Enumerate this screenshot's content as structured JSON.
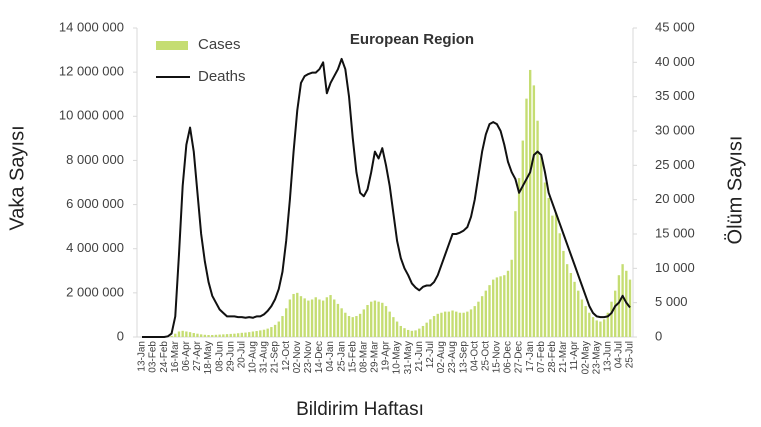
{
  "chart_data": {
    "type": "bar",
    "title": "European Region",
    "x_label": "Bildirim Haftası",
    "y_label": "Vaka Sayısı",
    "y2_label": "Ölüm Sayısı",
    "categories": [
      "13-Jan",
      null,
      null,
      "03-Feb",
      null,
      null,
      "24-Feb",
      null,
      null,
      "16-Mar",
      null,
      null,
      "06-Apr",
      null,
      null,
      "27-Apr",
      null,
      null,
      "18-May",
      null,
      null,
      "08-Jun",
      null,
      null,
      "29-Jun",
      null,
      null,
      "20-Jul",
      null,
      null,
      "10-Aug",
      null,
      null,
      "31-Aug",
      null,
      null,
      "21-Sep",
      null,
      null,
      "12-Oct",
      null,
      null,
      "02-Nov",
      null,
      null,
      "23-Nov",
      null,
      null,
      "14-Dec",
      null,
      null,
      "04-Jan",
      null,
      null,
      "25-Jan",
      null,
      null,
      "15-Feb",
      null,
      null,
      "08-Mar",
      null,
      null,
      "29-Mar",
      null,
      null,
      "19-Apr",
      null,
      null,
      "10-May",
      null,
      null,
      "31-May",
      null,
      null,
      "21-Jun",
      null,
      null,
      "12-Jul",
      null,
      null,
      "02-Aug",
      null,
      null,
      "23-Aug",
      null,
      null,
      "13-Sep",
      null,
      null,
      "04-Oct",
      null,
      null,
      "25-Oct",
      null,
      null,
      "15-Nov",
      null,
      null,
      "06-Dec",
      null,
      null,
      "27-Dec",
      null,
      null,
      "17-Jan",
      null,
      null,
      "07-Feb",
      null,
      null,
      "28-Feb",
      null,
      null,
      "21-Mar",
      null,
      null,
      "11-Apr",
      null,
      null,
      "02-May",
      null,
      null,
      "23-May",
      null,
      null,
      "13-Jun",
      null,
      null,
      "04-Jul",
      null,
      null,
      "25-Jul"
    ],
    "series": [
      {
        "name": "Cases",
        "type": "bar",
        "color": "#c5dd72",
        "values": [
          0,
          0,
          0,
          0,
          0,
          0,
          0,
          10000,
          50000,
          150000,
          250000,
          280000,
          250000,
          220000,
          180000,
          150000,
          120000,
          100000,
          90000,
          90000,
          100000,
          110000,
          120000,
          130000,
          140000,
          150000,
          170000,
          190000,
          200000,
          220000,
          250000,
          270000,
          300000,
          330000,
          380000,
          450000,
          550000,
          700000,
          950000,
          1300000,
          1700000,
          1950000,
          2000000,
          1850000,
          1750000,
          1650000,
          1700000,
          1800000,
          1700000,
          1650000,
          1800000,
          1900000,
          1700000,
          1500000,
          1300000,
          1100000,
          950000,
          900000,
          950000,
          1050000,
          1250000,
          1450000,
          1600000,
          1650000,
          1600000,
          1550000,
          1400000,
          1150000,
          900000,
          700000,
          500000,
          400000,
          320000,
          280000,
          300000,
          380000,
          500000,
          650000,
          800000,
          950000,
          1050000,
          1100000,
          1150000,
          1150000,
          1200000,
          1150000,
          1100000,
          1100000,
          1150000,
          1250000,
          1400000,
          1600000,
          1850000,
          2100000,
          2350000,
          2600000,
          2700000,
          2750000,
          2800000,
          3000000,
          3500000,
          5700000,
          7200000,
          8900000,
          10800000,
          12100000,
          11400000,
          9800000,
          8200000,
          7000000,
          6300000,
          5500000,
          5600000,
          4700000,
          3900000,
          3300000,
          2900000,
          2500000,
          2100000,
          1700000,
          1400000,
          1100000,
          900000,
          750000,
          700000,
          800000,
          1100000,
          1600000,
          2100000,
          2800000,
          3300000,
          3000000,
          2600000
        ]
      },
      {
        "name": "Deaths",
        "type": "line",
        "axis": "y2",
        "color": "#111111",
        "values": [
          0,
          0,
          0,
          0,
          0,
          0,
          0,
          100,
          500,
          3000,
          12000,
          22000,
          28000,
          30500,
          27000,
          21000,
          15000,
          11000,
          8000,
          6000,
          5000,
          4000,
          3500,
          3000,
          3000,
          3000,
          2900,
          2900,
          2800,
          2900,
          2800,
          3000,
          3000,
          3300,
          3800,
          4500,
          5500,
          7000,
          9500,
          14000,
          20000,
          27000,
          33000,
          37000,
          38000,
          38300,
          38500,
          38500,
          39000,
          40000,
          35500,
          37000,
          38000,
          39000,
          40500,
          39000,
          35000,
          29000,
          24000,
          21000,
          20500,
          21500,
          24000,
          27000,
          26000,
          27500,
          25000,
          22000,
          18000,
          14000,
          11500,
          10000,
          9000,
          7800,
          7200,
          6800,
          7300,
          7500,
          7500,
          8000,
          9000,
          10500,
          12000,
          13500,
          15000,
          15000,
          15200,
          15500,
          16000,
          17500,
          20000,
          23500,
          27000,
          29500,
          31000,
          31300,
          31000,
          30000,
          28000,
          25500,
          24000,
          23000,
          21000,
          22000,
          23000,
          24000,
          26500,
          27000,
          26500,
          24000,
          21000,
          19500,
          18000,
          16500,
          15000,
          13500,
          12000,
          10500,
          9000,
          7500,
          6000,
          4500,
          3500,
          3000,
          2900,
          2900,
          3000,
          3500,
          4500,
          5000,
          6000,
          5000,
          4300
        ]
      }
    ],
    "ylim": [
      0,
      14000000
    ],
    "yticks": [
      0,
      {
        "value": 2000000,
        "label": "2 000 000"
      },
      {
        "value": 4000000,
        "label": "4 000 000"
      },
      {
        "value": 6000000,
        "label": "6 000 000"
      },
      {
        "value": 8000000,
        "label": "8 000 000"
      },
      {
        "value": 10000000,
        "label": "10 000 000"
      },
      {
        "value": 12000000,
        "label": "12 000 000"
      },
      {
        "value": 14000000,
        "label": "14 000 000"
      }
    ],
    "y2lim": [
      0,
      45000
    ],
    "y2ticks": [
      0,
      {
        "value": 5000,
        "label": "5 000"
      },
      {
        "value": 10000,
        "label": "10 000"
      },
      {
        "value": 15000,
        "label": "15 000"
      },
      {
        "value": 20000,
        "label": "20 000"
      },
      {
        "value": 25000,
        "label": "25 000"
      },
      {
        "value": 30000,
        "label": "30 000"
      },
      {
        "value": 35000,
        "label": "35 000"
      },
      {
        "value": 40000,
        "label": "40 000"
      },
      {
        "value": 45000,
        "label": "45 000"
      }
    ],
    "legend": "top-left"
  }
}
